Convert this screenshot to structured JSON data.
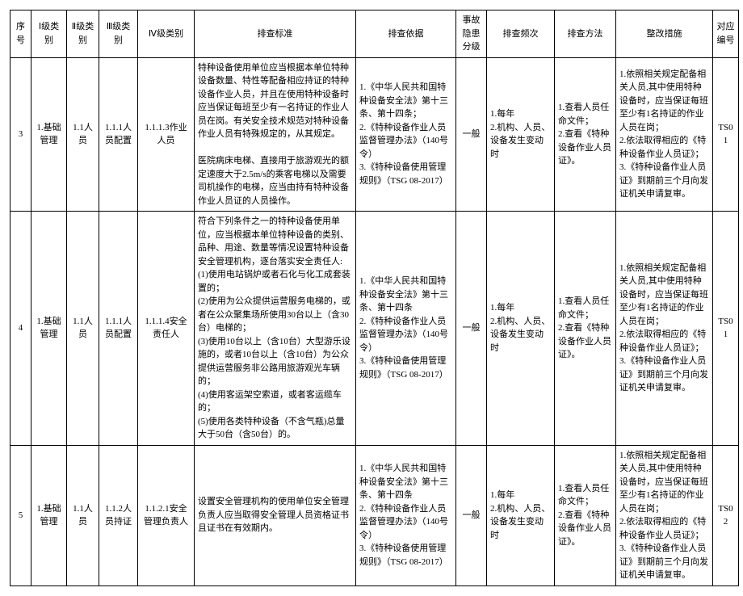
{
  "headers": {
    "seq": "序号",
    "c1": "Ⅰ级类别",
    "c2": "Ⅱ级类别",
    "c3": "Ⅲ级类别",
    "c4": "Ⅳ级类别",
    "std": "排查标准",
    "basis": "排查依据",
    "risk": "事故隐患分级",
    "freq": "排查频次",
    "meth": "排查方法",
    "act": "整改措施",
    "code": "对应编号"
  },
  "rows": [
    {
      "seq": "3",
      "c1": "1.基础管理",
      "c2": "1.1人员",
      "c3": "1.1.1人员配置",
      "c4": "1.1.1.3作业人员",
      "std": "特种设备使用单位应当根据本单位特种设备数量、特性等配备相应持证的特种设备作业人员，并且在使用特种设备时应当保证每班至少有一名持证的作业人员在岗。有关安全技术规范对特种设备作业人员有特殊规定的，从其规定。\n\n医院病床电梯、直接用于旅游观光的额定速度大于2.5m/s的乘客电梯以及需要司机操作的电梯，应当由持有特种设备作业人员证的人员操作。",
      "basis": "1.《中华人民共和国特种设备安全法》第十三条、第十四条；\n2.《特种设备作业人员监督管理办法》（140号令）\n3.《特种设备使用管理规则》（TSG 08-2017）",
      "risk": "一般",
      "freq": "1.每年\n2.机构、人员、设备发生变动时",
      "meth": "1.查看人员任命文件；\n2.查看《特种设备作业人员证》。",
      "act": "1.依照相关规定配备相关人员,其中使用特种设备时，应当保证每班至少有1名持证的作业人员在岗；\n2.依法取得相应的《特种设备作业人员证》；\n3.《特种设备作业人员证》到期前三个月向发证机关申请复审。",
      "code": "TS01"
    },
    {
      "seq": "4",
      "c1": "1.基础管理",
      "c2": "1.1人员",
      "c3": "1.1.1人员配置",
      "c4": "1.1.1.4安全责任人",
      "std": "符合下列条件之一的特种设备使用单位，应当根据本单位特种设备的类别、品种、用途、数量等情况设置特种设备安全管理机构，逐台落实安全责任人:\n(1)使用电站锅炉或者石化与化工成套装置的；\n(2)使用为公众提供运营服务电梯的，或者在公众聚集场所使用30台以上（含30台）电梯的；\n(3)使用10台以上（含10台）大型游乐设施的，或者10台以上（含10台）为公众提供运营服务非公路用旅游观光车辆的；\n(4)使用客运架空索道，或者客运缆车的；\n(5)使用各类特种设备（不含气瓶)总量大于50台（含50台）的。",
      "basis": "1.《中华人民共和国特种设备安全法》第十三条、第十四条\n2.《特种设备作业人员监督管理办法》（140号令）\n3.《特种设备使用管理规则》（TSG 08-2017）",
      "risk": "一般",
      "freq": "1.每年\n2.机构、人员、设备发生变动时",
      "meth": "1.查看人员任命文件；\n2.查看《特种设备作业人员证》。",
      "act": "1.依照相关规定配备相关人员,其中使用特种设备时，应当保证每班至少有1名持证的作业人员在岗；\n2.依法取得相应的《特种设备作业人员证》；\n3.《特种设备作业人员证》到期前三个月向发证机关申请复审。",
      "code": "TS01"
    },
    {
      "seq": "5",
      "c1": "1.基础管理",
      "c2": "1.1人员",
      "c3": "1.1.2人员持证",
      "c4": "1.1.2.1安全管理负责人",
      "std": "设置安全管理机构的使用单位安全管理负责人应当取得安全管理人员资格证书且证书在有效期内。",
      "basis": "1.《中华人民共和国特种设备安全法》第十三条、第十四条\n2.《特种设备作业人员监督管理办法》（140号令）\n3.《特种设备使用管理规则》（TSG 08-2017）",
      "risk": "一般",
      "freq": "1.每年\n2.机构、人员、设备发生变动时",
      "meth": "1.查看人员任命文件；\n2.查看《特种设备作业人员证》。",
      "act": "1.依照相关规定配备相关人员,其中使用特种设备时，应当保证每班至少有1名持证的作业人员在岗；\n2.依法取得相应的《特种设备作业人员证》；\n3.《特种设备作业人员证》到期前三个月向发证机关申请复审。",
      "code": "TS02"
    }
  ]
}
